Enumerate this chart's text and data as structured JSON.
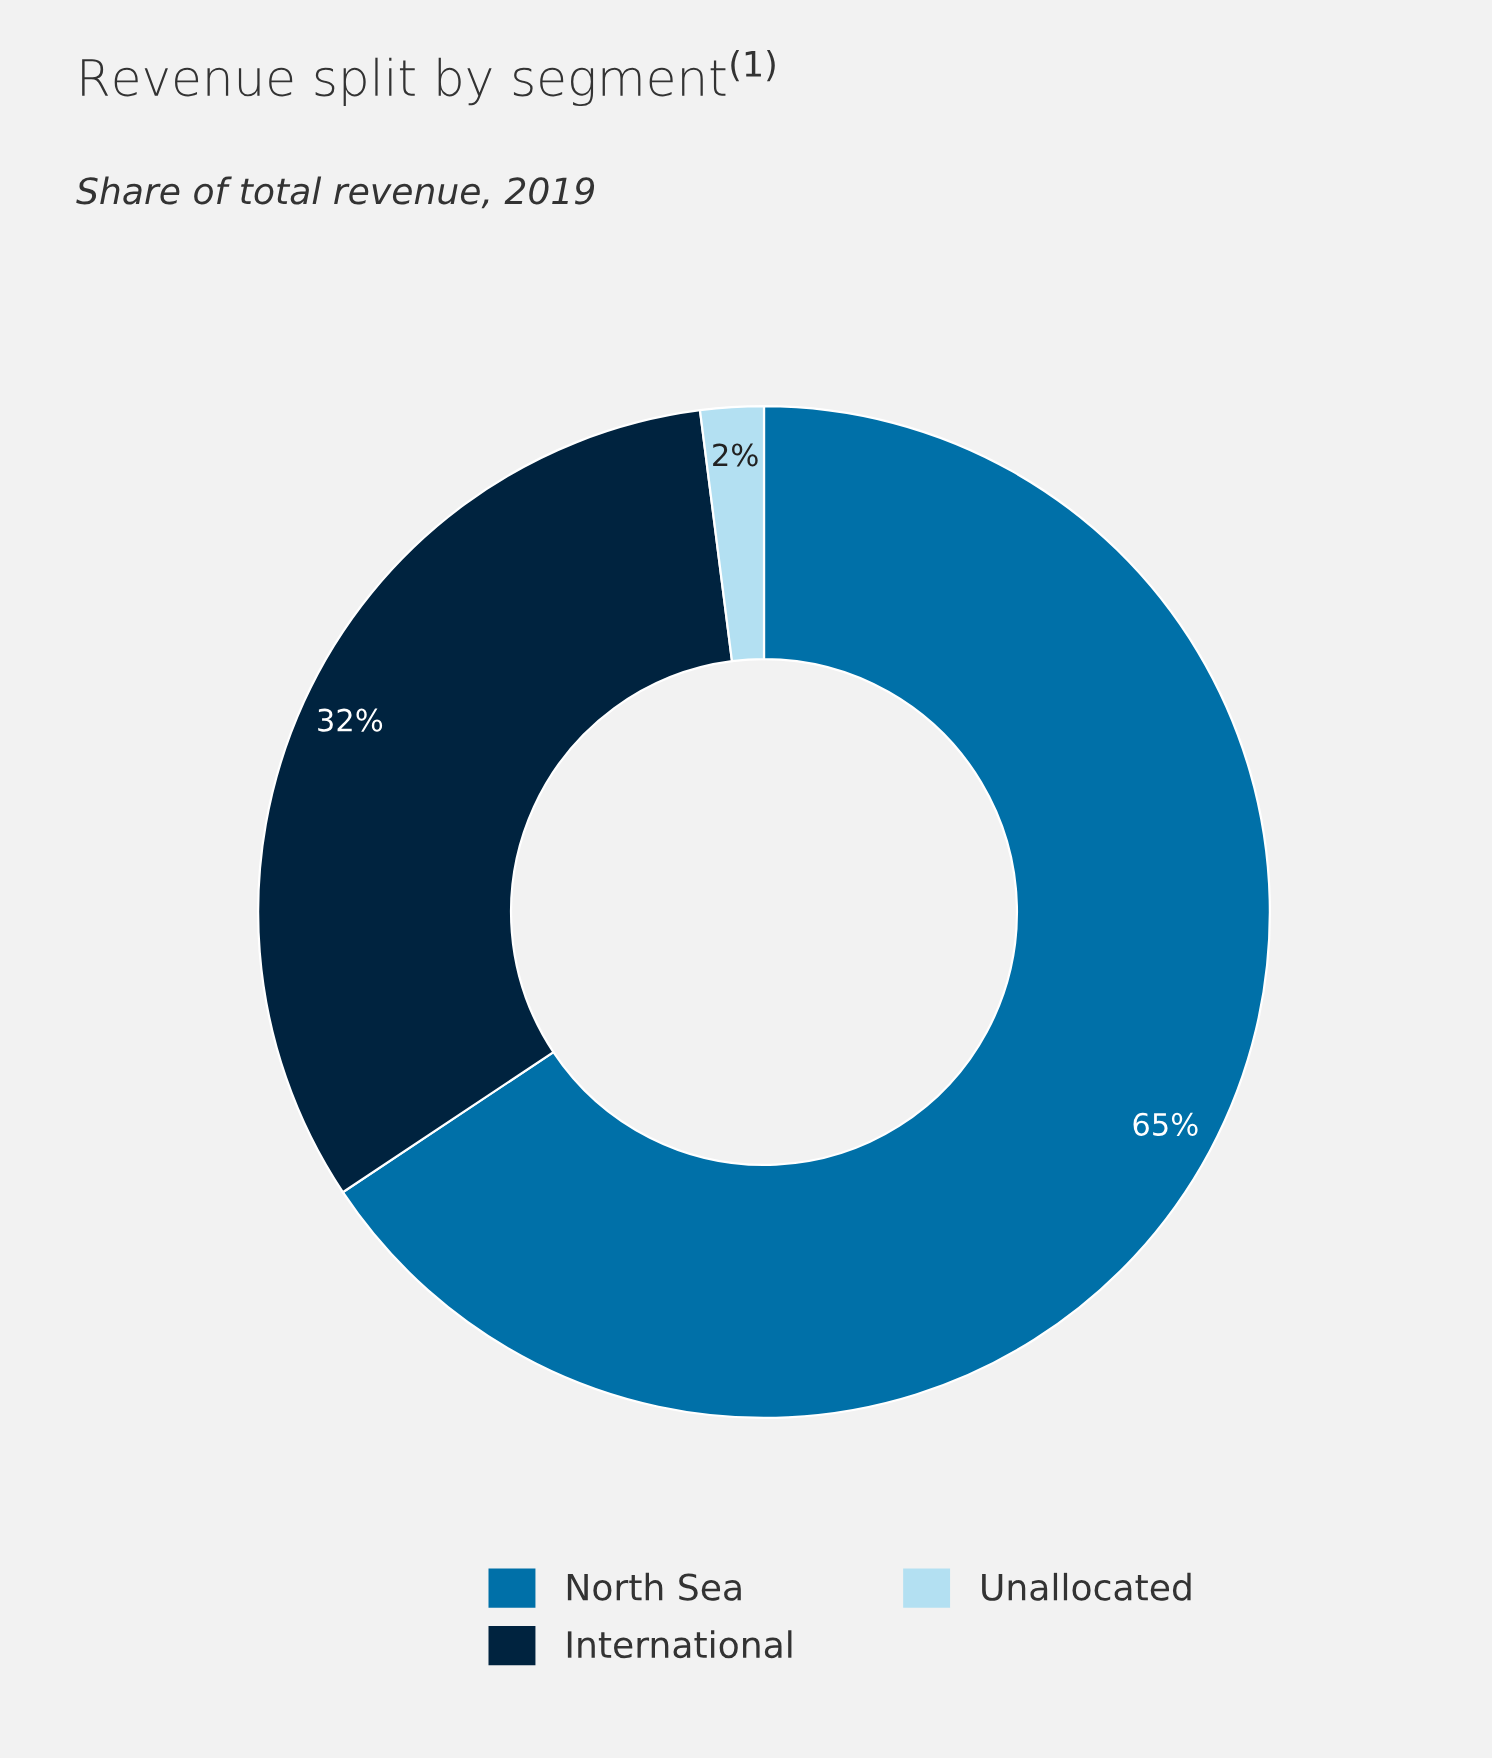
{
  "chart_data": {
    "type": "donut",
    "title": "Revenue split by segment$^{(1)}$",
    "subtitle": "Share of total revenue, 2019",
    "categories": [
      "North Sea",
      "International",
      "Unallocated"
    ],
    "values": [
      65,
      32,
      2
    ],
    "value_labels": [
      "65%",
      "32%",
      "2%"
    ],
    "colors": [
      "#0070a8",
      "#00233f",
      "#b3e0f2"
    ],
    "legend": "bottom"
  }
}
